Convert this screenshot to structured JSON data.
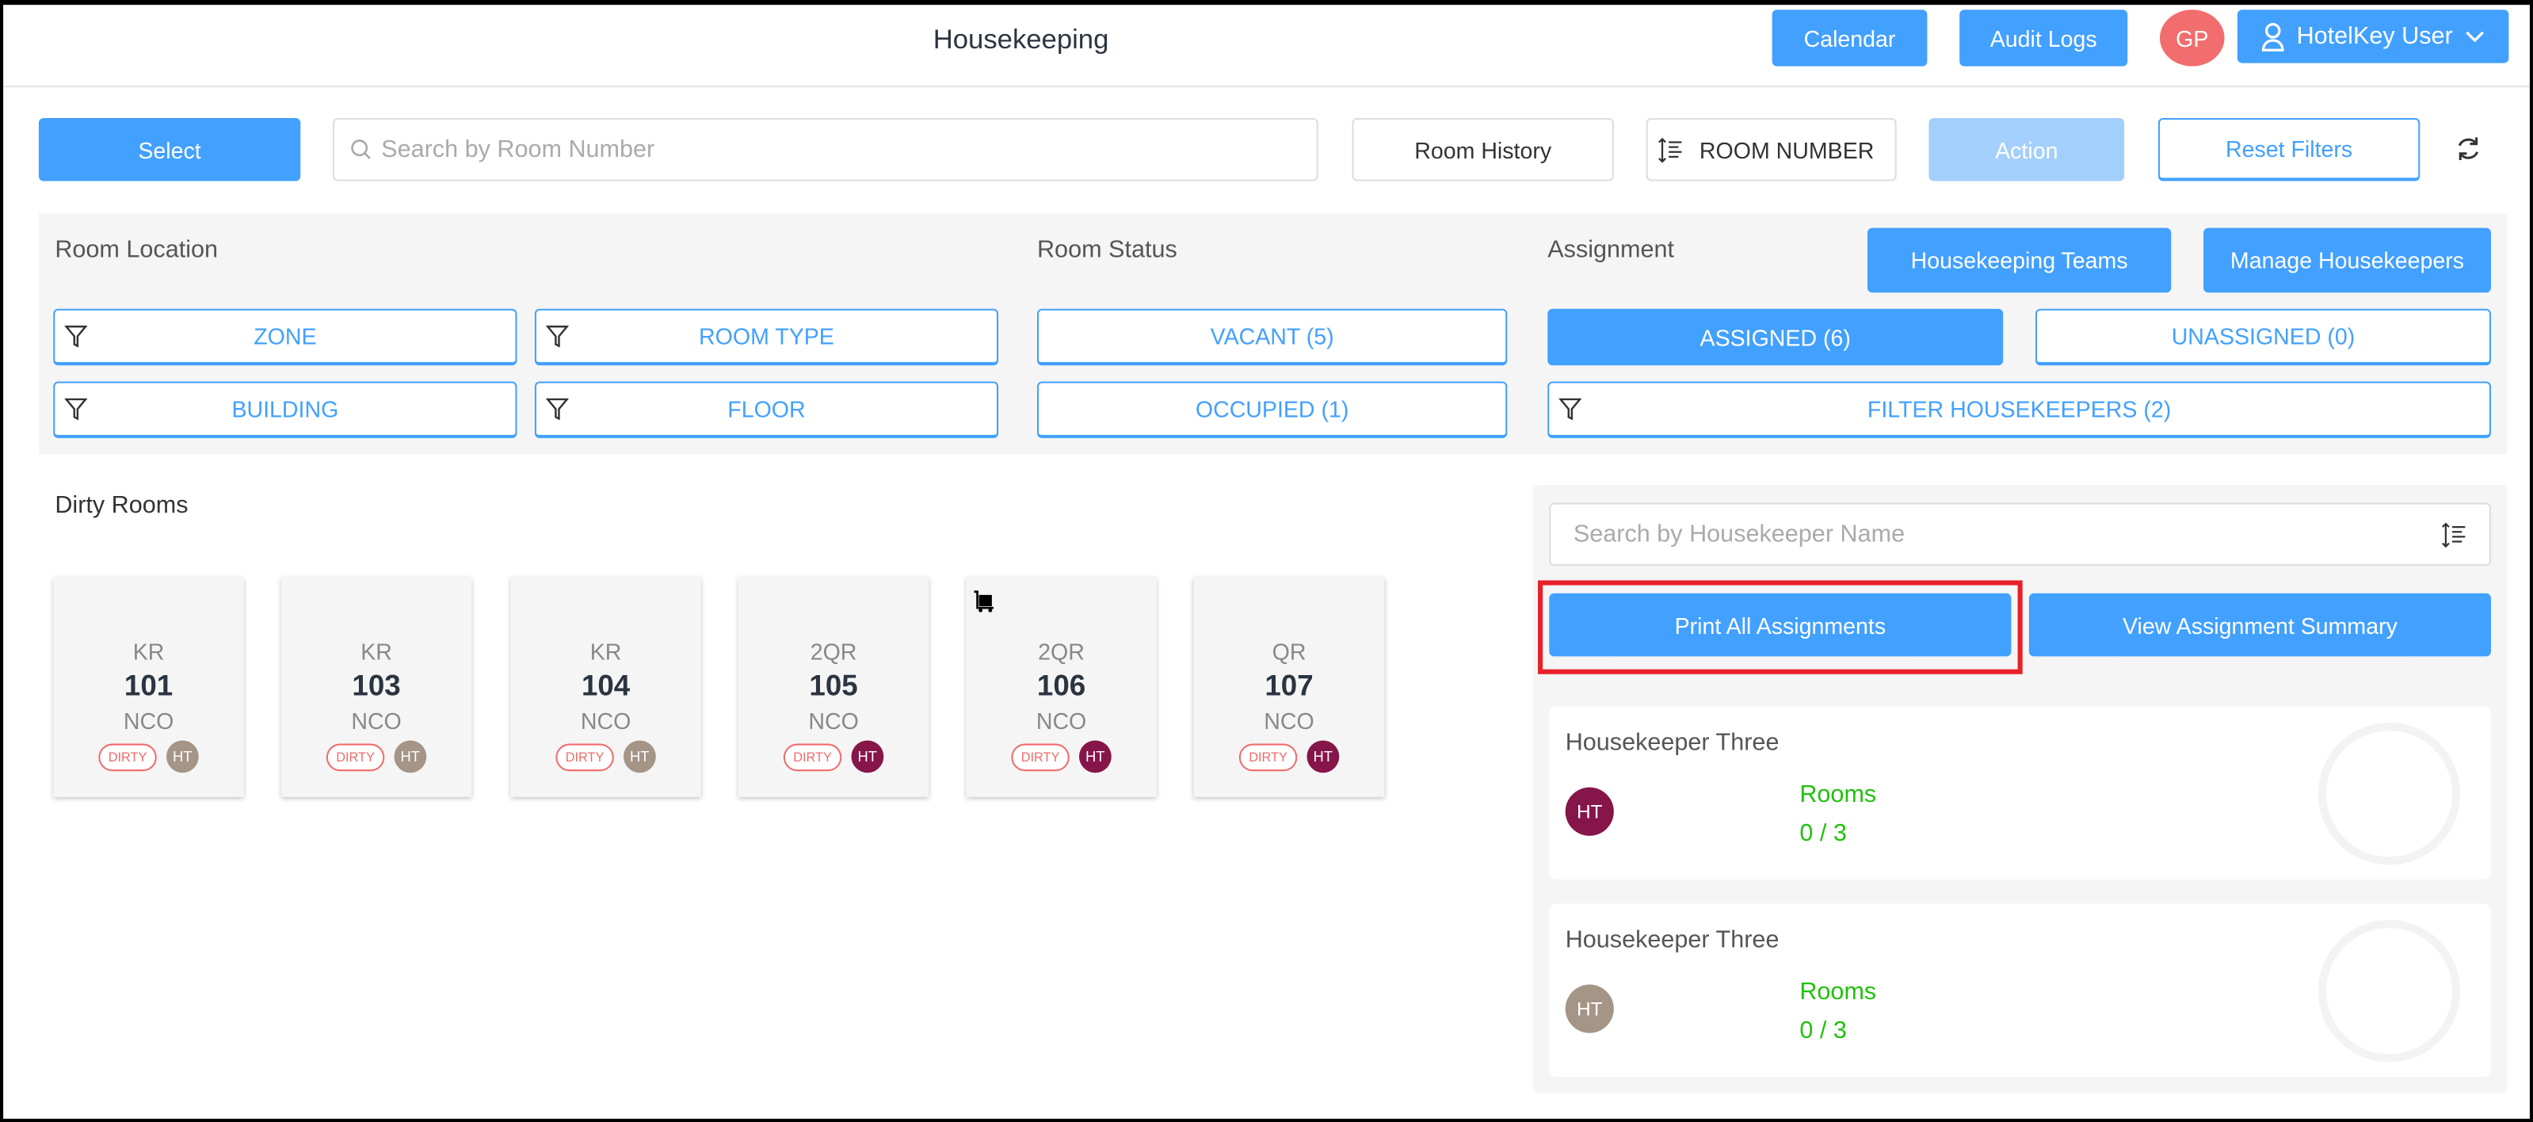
{
  "header": {
    "title": "Housekeeping",
    "calendar": "Calendar",
    "audit_logs": "Audit Logs",
    "avatar_initials": "GP",
    "user": "HotelKey User"
  },
  "toolbar": {
    "select": "Select",
    "search_placeholder": "Search by Room Number",
    "room_history": "Room History",
    "sort": "ROOM NUMBER",
    "action": "Action",
    "reset": "Reset Filters"
  },
  "filters": {
    "room_location": "Room Location",
    "room_status": "Room Status",
    "assignment": "Assignment",
    "housekeeping_teams": "Housekeeping Teams",
    "manage_housekeepers": "Manage Housekeepers",
    "zone": "ZONE",
    "room_type": "ROOM TYPE",
    "building": "BUILDING",
    "floor": "FLOOR",
    "vacant": "VACANT (5)",
    "occupied": "OCCUPIED (1)",
    "assigned": "ASSIGNED (6)",
    "unassigned": "UNASSIGNED (0)",
    "filter_housekeepers": "FILTER HOUSEKEEPERS (2)"
  },
  "dirty_rooms": {
    "title": "Dirty Rooms",
    "rooms": [
      {
        "type": "KR",
        "number": "101",
        "status": "NCO",
        "badge": "DIRTY",
        "initials": "HT",
        "color": "#a59587",
        "luggage": false
      },
      {
        "type": "KR",
        "number": "103",
        "status": "NCO",
        "badge": "DIRTY",
        "initials": "HT",
        "color": "#a59587",
        "luggage": false
      },
      {
        "type": "KR",
        "number": "104",
        "status": "NCO",
        "badge": "DIRTY",
        "initials": "HT",
        "color": "#a59587",
        "luggage": false
      },
      {
        "type": "2QR",
        "number": "105",
        "status": "NCO",
        "badge": "DIRTY",
        "initials": "HT",
        "color": "#86154a",
        "luggage": false
      },
      {
        "type": "2QR",
        "number": "106",
        "status": "NCO",
        "badge": "DIRTY",
        "initials": "HT",
        "color": "#86154a",
        "luggage": true
      },
      {
        "type": "QR",
        "number": "107",
        "status": "NCO",
        "badge": "DIRTY",
        "initials": "HT",
        "color": "#86154a",
        "luggage": false
      }
    ]
  },
  "assignments": {
    "search_placeholder": "Search by Housekeeper Name",
    "print_all": "Print All Assignments",
    "view_summary": "View Assignment Summary",
    "housekeepers": [
      {
        "name": "Housekeeper Three",
        "initials": "HT",
        "color": "#86154a",
        "rooms_label": "Rooms",
        "rooms": "0 / 3"
      },
      {
        "name": "Housekeeper Three",
        "initials": "HT",
        "color": "#a59587",
        "rooms_label": "Rooms",
        "rooms": "0 / 3"
      }
    ]
  },
  "colors": {
    "primary": "#42a0ff",
    "disabled": "#a3cffd",
    "avatar": "#f26d6d",
    "highlight": "#e8202a",
    "rooms_text": "#22c10e"
  }
}
